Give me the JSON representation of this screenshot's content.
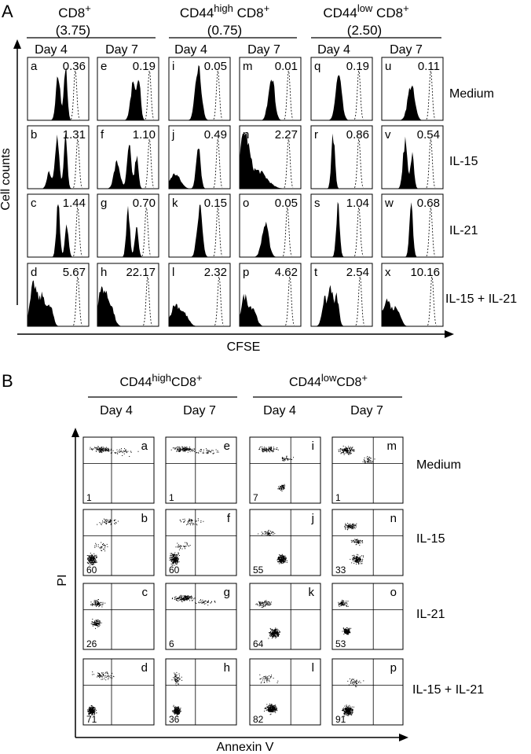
{
  "panelA": {
    "label": "A",
    "groups": [
      {
        "title": "CD8",
        "sup": "+",
        "sub": "(3.75)"
      },
      {
        "title_pre": "CD44",
        "title_sup": "high",
        "title": " CD8",
        "sup": "+",
        "sub": "(0.75)"
      },
      {
        "title_pre": "CD44",
        "title_sup": "low",
        "title": " CD8",
        "sup": "+",
        "sub": "(2.50)"
      }
    ],
    "days": [
      "Day 4",
      "Day 7"
    ],
    "conditions": [
      "Medium",
      "IL-15",
      "IL-21",
      "IL-15 + IL-21"
    ],
    "ylabel": "Cell counts",
    "xlabel": "CFSE",
    "cells": [
      [
        [
          "a",
          "0.36"
        ],
        [
          "e",
          "0.19"
        ],
        [
          "i",
          "0.05"
        ],
        [
          "m",
          "0.01"
        ],
        [
          "q",
          "0.19"
        ],
        [
          "u",
          "0.11"
        ]
      ],
      [
        [
          "b",
          "1.31"
        ],
        [
          "f",
          "1.10"
        ],
        [
          "j",
          "0.49"
        ],
        [
          "n",
          "2.27"
        ],
        [
          "r",
          "0.86"
        ],
        [
          "v",
          "0.54"
        ]
      ],
      [
        [
          "c",
          "1.44"
        ],
        [
          "g",
          "0.70"
        ],
        [
          "k",
          "0.15"
        ],
        [
          "o",
          "0.05"
        ],
        [
          "s",
          "1.04"
        ],
        [
          "w",
          "0.68"
        ]
      ],
      [
        [
          "d",
          "5.67"
        ],
        [
          "h",
          "22.17"
        ],
        [
          "l",
          "2.32"
        ],
        [
          "p",
          "4.62"
        ],
        [
          "t",
          "2.54"
        ],
        [
          "x",
          "10.16"
        ]
      ]
    ]
  },
  "panelB": {
    "label": "B",
    "groups": [
      {
        "pre": "CD44",
        "sup": "high",
        "post": "CD8",
        "sup2": "+"
      },
      {
        "pre": "CD44",
        "sup": "low",
        "post": "CD8",
        "sup2": "+"
      }
    ],
    "days": [
      "Day 4",
      "Day 7"
    ],
    "conditions": [
      "Medium",
      "IL-15",
      "IL-21",
      "IL-15 + IL-21"
    ],
    "ylabel": "PI",
    "xlabel": "Annexin V",
    "cells": [
      [
        [
          "a",
          "1"
        ],
        [
          "e",
          "1"
        ],
        [
          "i",
          "7"
        ],
        [
          "m",
          "1"
        ]
      ],
      [
        [
          "b",
          "60"
        ],
        [
          "f",
          "60"
        ],
        [
          "j",
          "55"
        ],
        [
          "n",
          "33"
        ]
      ],
      [
        [
          "c",
          "26"
        ],
        [
          "g",
          "6"
        ],
        [
          "k",
          "64"
        ],
        [
          "o",
          "53"
        ]
      ],
      [
        [
          "d",
          "71"
        ],
        [
          "h",
          "36"
        ],
        [
          "l",
          "82"
        ],
        [
          "p",
          "91"
        ]
      ]
    ]
  }
}
